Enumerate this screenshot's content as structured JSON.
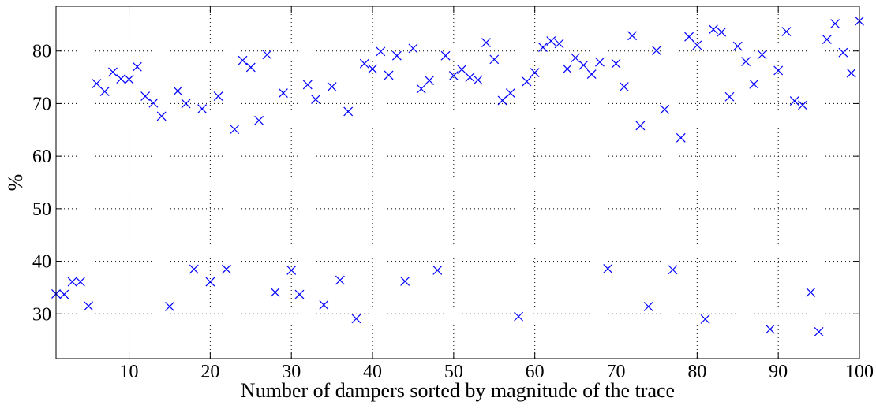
{
  "chart_data": {
    "type": "scatter",
    "title": "",
    "xlabel": "Number of dampers sorted by magnitude of the trace",
    "ylabel": "%",
    "xlim": [
      1,
      100
    ],
    "ylim": [
      21.5,
      88.5
    ],
    "xticks": [
      10,
      20,
      30,
      40,
      50,
      60,
      70,
      80,
      90,
      100
    ],
    "yticks": [
      30,
      40,
      50,
      60,
      70,
      80
    ],
    "grid": true,
    "marker": "x",
    "color": "#0000ff",
    "series": [
      {
        "x": [
          1,
          2,
          3,
          4,
          5,
          6,
          7,
          8,
          9,
          10,
          11,
          12,
          13,
          14,
          15,
          16,
          17,
          18,
          19,
          20,
          21,
          22,
          23,
          24,
          25,
          26,
          27,
          28,
          29,
          30,
          31,
          32,
          33,
          34,
          35,
          36,
          37,
          38,
          39,
          40,
          41,
          42,
          43,
          44,
          45,
          46,
          47,
          48,
          49,
          50,
          51,
          52,
          53,
          54,
          55,
          56,
          57,
          58,
          59,
          60,
          61,
          62,
          63,
          64,
          65,
          66,
          67,
          68,
          69,
          70,
          71,
          72,
          73,
          74,
          75,
          76,
          77,
          78,
          79,
          80,
          81,
          82,
          83,
          84,
          85,
          86,
          87,
          88,
          89,
          90,
          91,
          92,
          93,
          94,
          95,
          96,
          97,
          98,
          99,
          100
        ],
        "y": [
          33.8,
          33.7,
          36.1,
          36.1,
          31.5,
          73.8,
          72.3,
          76.0,
          74.7,
          74.6,
          77.0,
          71.4,
          70.1,
          67.6,
          31.4,
          72.4,
          70.0,
          38.5,
          69.0,
          36.1,
          71.4,
          38.5,
          65.1,
          78.2,
          76.9,
          66.8,
          79.3,
          34.1,
          72.0,
          38.3,
          33.7,
          73.6,
          70.8,
          31.7,
          73.2,
          36.4,
          68.5,
          29.1,
          77.6,
          76.6,
          79.9,
          75.4,
          79.1,
          36.2,
          80.5,
          72.8,
          74.4,
          38.3,
          79.1,
          75.3,
          76.5,
          75.0,
          74.5,
          81.6,
          78.4,
          70.6,
          72.0,
          29.5,
          74.2,
          75.9,
          80.7,
          81.9,
          81.4,
          76.6,
          78.7,
          77.3,
          75.6,
          77.9,
          38.6,
          77.6,
          73.2,
          82.9,
          65.8,
          31.4,
          80.1,
          68.9,
          38.4,
          63.5,
          82.7,
          81.1,
          29.0,
          84.1,
          83.6,
          71.3,
          80.9,
          78.0,
          73.7,
          79.3,
          27.1,
          76.3,
          83.7,
          70.5,
          69.7,
          34.1,
          26.6,
          82.2,
          85.2,
          79.7,
          75.8,
          85.7
        ]
      }
    ]
  }
}
